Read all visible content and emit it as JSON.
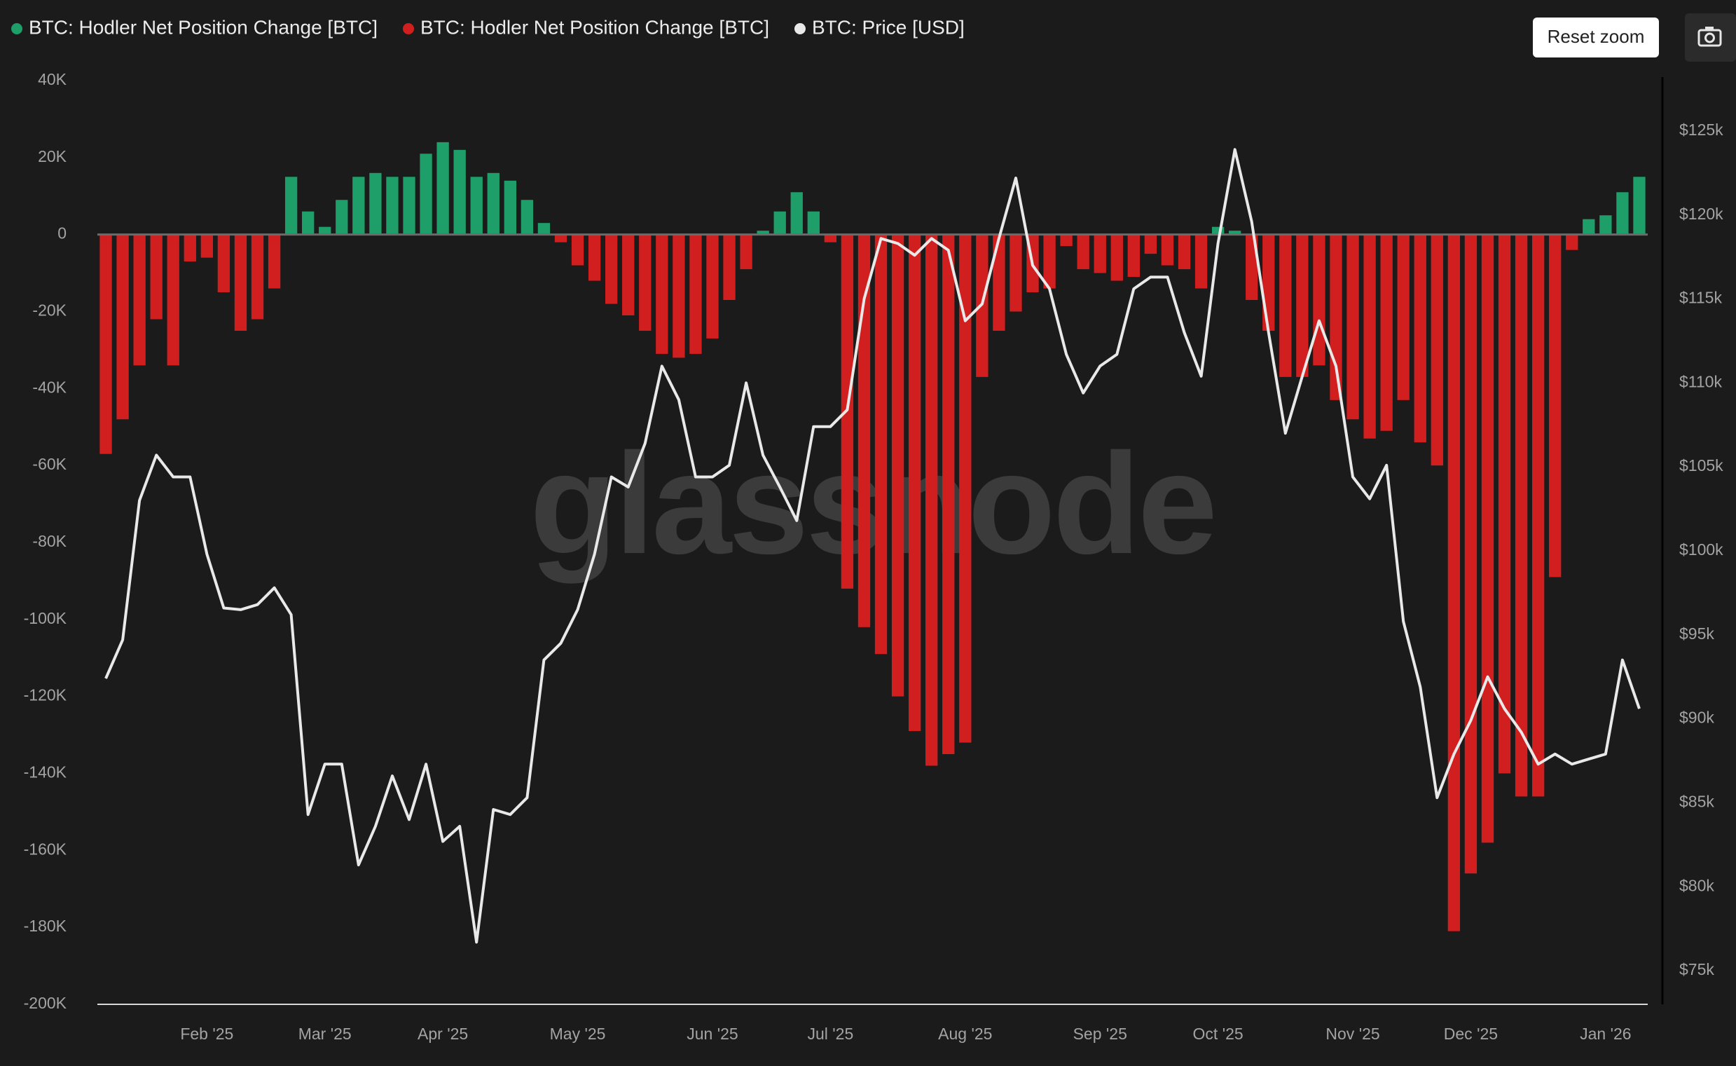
{
  "watermark": "glassnode",
  "reset_zoom_button": "Reset zoom",
  "chart_data": {
    "type": "bar",
    "categories": [
      null,
      null,
      null,
      null,
      null,
      null,
      "Feb '25",
      null,
      null,
      null,
      null,
      null,
      null,
      "Mar '25",
      null,
      null,
      null,
      null,
      null,
      null,
      "Apr '25",
      null,
      null,
      null,
      null,
      null,
      null,
      null,
      "May '25",
      null,
      null,
      null,
      null,
      null,
      null,
      null,
      "Jun '25",
      null,
      null,
      null,
      null,
      null,
      null,
      "Jul '25",
      null,
      null,
      null,
      null,
      null,
      null,
      null,
      "Aug '25",
      null,
      null,
      null,
      null,
      null,
      null,
      null,
      "Sep '25",
      null,
      null,
      null,
      null,
      null,
      null,
      "Oct '25",
      null,
      null,
      null,
      null,
      null,
      null,
      null,
      "Nov '25",
      null,
      null,
      null,
      null,
      null,
      null,
      "Dec '25",
      null,
      null,
      null,
      null,
      null,
      null,
      null,
      "Jan '26",
      null,
      null
    ],
    "series": [
      {
        "name": "BTC: Hodler Net Position Change [BTC]",
        "color": "#1e9e68",
        "type": "bar",
        "values": [
          null,
          null,
          null,
          null,
          null,
          null,
          null,
          null,
          null,
          null,
          null,
          15000,
          6000,
          2000,
          9000,
          15000,
          16000,
          15000,
          15000,
          21000,
          24000,
          22000,
          15000,
          16000,
          14000,
          9000,
          3000,
          null,
          null,
          null,
          null,
          null,
          null,
          null,
          null,
          null,
          null,
          null,
          null,
          1000,
          6000,
          11000,
          6000,
          null,
          null,
          null,
          null,
          null,
          null,
          null,
          null,
          null,
          null,
          null,
          null,
          null,
          null,
          null,
          null,
          null,
          null,
          null,
          null,
          null,
          null,
          null,
          2000,
          1000,
          null,
          null,
          null,
          null,
          null,
          null,
          null,
          null,
          null,
          null,
          null,
          null,
          null,
          null,
          null,
          null,
          null,
          null,
          null,
          null,
          4000,
          5000,
          11000,
          15000
        ]
      },
      {
        "name": "BTC: Hodler Net Position Change [BTC]",
        "color": "#d11f1f",
        "type": "bar",
        "values": [
          -57000,
          -48000,
          -34000,
          -22000,
          -34000,
          -7000,
          -6000,
          -15000,
          -25000,
          -22000,
          -14000,
          null,
          null,
          null,
          null,
          null,
          null,
          null,
          null,
          null,
          null,
          null,
          null,
          null,
          null,
          null,
          null,
          -2000,
          -8000,
          -12000,
          -18000,
          -21000,
          -25000,
          -31000,
          -32000,
          -31000,
          -27000,
          -17000,
          -9000,
          null,
          null,
          null,
          null,
          -2000,
          -92000,
          -102000,
          -109000,
          -120000,
          -129000,
          -138000,
          -135000,
          -132000,
          -37000,
          -25000,
          -20000,
          -15000,
          -14000,
          -3000,
          -9000,
          -10000,
          -12000,
          -11000,
          -5000,
          -8000,
          -9000,
          -14000,
          null,
          null,
          -17000,
          -25000,
          -37000,
          -37000,
          -34000,
          -43000,
          -48000,
          -53000,
          -51000,
          -43000,
          -54000,
          -60000,
          -181000,
          -166000,
          -158000,
          -140000,
          -146000,
          -146000,
          -89000,
          -4000,
          null,
          null,
          null,
          null
        ]
      },
      {
        "name": "BTC: Price [USD]",
        "color": "#e9e9e9",
        "type": "line",
        "axis": "y2",
        "values": [
          92400,
          94700,
          103000,
          105700,
          104400,
          104400,
          99800,
          96600,
          96500,
          96800,
          97800,
          96200,
          84300,
          87300,
          87300,
          81300,
          83600,
          86600,
          84000,
          87300,
          82700,
          83600,
          76700,
          84600,
          84300,
          85300,
          93500,
          94500,
          96500,
          99800,
          104400,
          103800,
          106400,
          111000,
          109000,
          104400,
          104400,
          105100,
          110000,
          105700,
          103800,
          101800,
          107400,
          107400,
          108400,
          115000,
          118600,
          118300,
          117600,
          118600,
          117900,
          113700,
          114700,
          118600,
          122200,
          117000,
          115600,
          111700,
          109400,
          111000,
          111700,
          115600,
          116300,
          116300,
          113000,
          110400,
          118300,
          123900,
          119600,
          113000,
          107000,
          110400,
          113700,
          111000,
          104400,
          103100,
          105100,
          95800,
          91900,
          85300,
          87900,
          89900,
          92500,
          90600,
          89200,
          87300,
          87900,
          87300,
          87600,
          87900,
          93500,
          90600
        ]
      }
    ],
    "ylim": [
      -200000,
      40000
    ],
    "yticks": [
      {
        "value": -200000,
        "label": "-200K"
      },
      {
        "value": -180000,
        "label": "-180K"
      },
      {
        "value": -160000,
        "label": "-160K"
      },
      {
        "value": -140000,
        "label": "-140K"
      },
      {
        "value": -120000,
        "label": "-120K"
      },
      {
        "value": -100000,
        "label": "-100K"
      },
      {
        "value": -80000,
        "label": "-80K"
      },
      {
        "value": -60000,
        "label": "-60K"
      },
      {
        "value": -40000,
        "label": "-40K"
      },
      {
        "value": -20000,
        "label": "-20K"
      },
      0,
      {
        "value": 20000,
        "label": "20K"
      },
      {
        "value": 40000,
        "label": "40K"
      }
    ],
    "y2lim": [
      73000,
      128000
    ],
    "y2ticks": [
      {
        "value": 75000,
        "label": "$75k"
      },
      {
        "value": 80000,
        "label": "$80k"
      },
      {
        "value": 85000,
        "label": "$85k"
      },
      {
        "value": 90000,
        "label": "$90k"
      },
      {
        "value": 95000,
        "label": "$95k"
      },
      {
        "value": 100000,
        "label": "$100k"
      },
      {
        "value": 105000,
        "label": "$105k"
      },
      {
        "value": 110000,
        "label": "$110k"
      },
      {
        "value": 115000,
        "label": "$115k"
      },
      {
        "value": 120000,
        "label": "$120k"
      },
      {
        "value": 125000,
        "label": "$125k"
      }
    ],
    "grid": false
  }
}
